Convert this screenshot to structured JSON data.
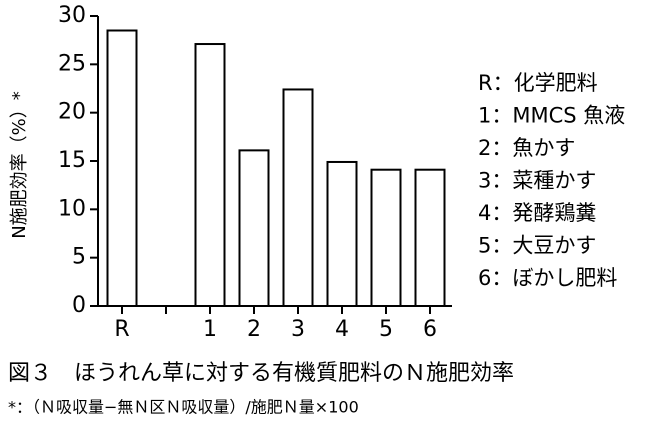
{
  "chart_data": {
    "type": "bar",
    "y_label": "N施肥効率（%）*",
    "categories": [
      "R",
      null,
      "1",
      "2",
      "3",
      "4",
      "5",
      "6"
    ],
    "values": [
      28.5,
      null,
      27.1,
      16.1,
      22.4,
      14.9,
      14.1,
      14.1
    ],
    "color": "#ffffff",
    "ylim": [
      0,
      30
    ],
    "yticks": [
      0,
      5,
      10,
      15,
      20,
      25,
      30
    ],
    "grid": false,
    "legend_notes": [
      "R：化学肥料",
      "1：MMCS 魚液",
      "2：魚かす",
      "3：菜種かす",
      "4：発酵鶏糞",
      "5：大豆かす",
      "6：ぼかし肥料"
    ],
    "caption": "図３　ほうれん草に対する有機質肥料のＮ施肥効率",
    "footnote": "*：（Ｎ吸収量−無Ｎ区Ｎ吸収量）/施肥Ｎ量×100"
  }
}
